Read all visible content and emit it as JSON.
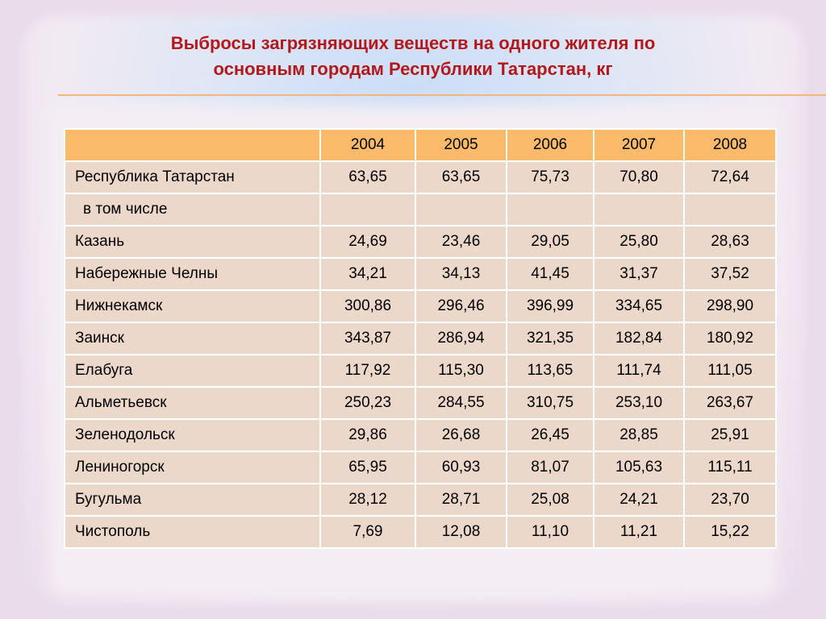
{
  "title": {
    "line1": "Выбросы загрязняющих веществ на одного жителя по",
    "line2": "основным городам Республики Татарстан, кг"
  },
  "table": {
    "years": [
      "2004",
      "2005",
      "2006",
      "2007",
      "2008"
    ],
    "rows": [
      {
        "name": "Республика Татарстан",
        "values": [
          "63,65",
          "63,65",
          "75,73",
          "70,80",
          "72,64"
        ]
      },
      {
        "name": "в том числе",
        "values": [
          "",
          "",
          "",
          "",
          ""
        ]
      },
      {
        "name": "Казань",
        "values": [
          "24,69",
          "23,46",
          "29,05",
          "25,80",
          "28,63"
        ]
      },
      {
        "name": "Набережные Челны",
        "values": [
          "34,21",
          "34,13",
          "41,45",
          "31,37",
          "37,52"
        ]
      },
      {
        "name": "Нижнекамск",
        "values": [
          "300,86",
          "296,46",
          "396,99",
          "334,65",
          "298,90"
        ]
      },
      {
        "name": "Заинск",
        "values": [
          "343,87",
          "286,94",
          "321,35",
          "182,84",
          "180,92"
        ]
      },
      {
        "name": "Елабуга",
        "values": [
          "117,92",
          "115,30",
          "113,65",
          "111,74",
          "111,05"
        ]
      },
      {
        "name": "Альметьевск",
        "values": [
          "250,23",
          "284,55",
          "310,75",
          "253,10",
          "263,67"
        ]
      },
      {
        "name": "Зеленодольск",
        "values": [
          "29,86",
          "26,68",
          "26,45",
          "28,85",
          "25,91"
        ]
      },
      {
        "name": "Лениногорск",
        "values": [
          "65,95",
          "60,93",
          "81,07",
          "105,63",
          "115,11"
        ]
      },
      {
        "name": "Бугульма",
        "values": [
          "28,12",
          "28,71",
          "25,08",
          "24,21",
          "23,70"
        ]
      },
      {
        "name": "Чистополь",
        "values": [
          "7,69",
          "12,08",
          "11,10",
          "11,21",
          "15,22"
        ]
      }
    ]
  },
  "colors": {
    "title": "#b4171c",
    "header_fill": "#fbbb6a",
    "cell_fill": "#ebd8ca",
    "rule": "#f0b87c"
  }
}
